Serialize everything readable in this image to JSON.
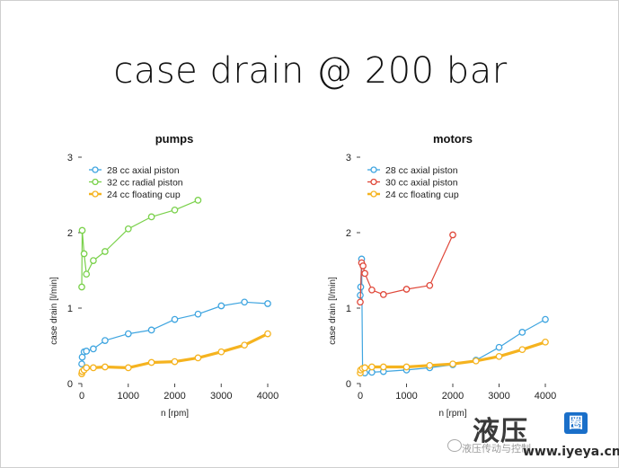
{
  "slide": {
    "title": "case drain @ 200 bar"
  },
  "colors": {
    "blue": "#3fa5e0",
    "green": "#7ad14b",
    "red": "#e0483a",
    "orange": "#f5b31f"
  },
  "watermark": {
    "brand": "液压",
    "badge": "圈",
    "subtitle": "液压传动与控制",
    "url": "www.iyeya.cn"
  },
  "chart_data": [
    {
      "type": "line",
      "title": "pumps",
      "xlabel": "n [rpm]",
      "ylabel": "case drain [l/min]",
      "xlim": [
        0,
        4000
      ],
      "ylim": [
        0,
        3
      ],
      "xticks": [
        0,
        1000,
        2000,
        3000,
        4000
      ],
      "yticks": [
        0,
        1,
        2,
        3
      ],
      "grid": false,
      "legend_position": "top-left",
      "series": [
        {
          "name": "28 cc axial piston",
          "color": "#3fa5e0",
          "width": 1.2,
          "x": [
            0,
            10,
            50,
            100,
            250,
            500,
            1000,
            1500,
            2000,
            2500,
            3000,
            3500,
            4000
          ],
          "y": [
            0.26,
            0.35,
            0.42,
            0.43,
            0.46,
            0.57,
            0.66,
            0.71,
            0.85,
            0.92,
            1.03,
            1.08,
            1.06
          ]
        },
        {
          "name": "32 cc radial piston",
          "color": "#7ad14b",
          "width": 1.2,
          "x": [
            0,
            10,
            50,
            100,
            250,
            500,
            1000,
            1500,
            2000,
            2500
          ],
          "y": [
            1.28,
            2.03,
            1.72,
            1.45,
            1.63,
            1.75,
            2.05,
            2.21,
            2.3,
            2.43
          ]
        },
        {
          "name": "24 cc floating cup",
          "color": "#f5b31f",
          "width": 3.2,
          "x": [
            0,
            10,
            50,
            100,
            250,
            500,
            1000,
            1500,
            2000,
            2500,
            3000,
            3500,
            4000
          ],
          "y": [
            0.13,
            0.16,
            0.18,
            0.21,
            0.21,
            0.22,
            0.21,
            0.28,
            0.29,
            0.34,
            0.42,
            0.51,
            0.66
          ]
        }
      ]
    },
    {
      "type": "line",
      "title": "motors",
      "xlabel": "n [rpm]",
      "ylabel": "case drain [l/min]",
      "xlim": [
        0,
        4000
      ],
      "ylim": [
        0,
        3
      ],
      "xticks": [
        0,
        1000,
        2000,
        3000,
        4000
      ],
      "yticks": [
        0,
        1,
        2,
        3
      ],
      "grid": false,
      "legend_position": "top-left",
      "series": [
        {
          "name": "28 cc axial piston",
          "color": "#3fa5e0",
          "width": 1.2,
          "x": [
            0,
            10,
            30,
            50,
            100,
            250,
            500,
            1000,
            1500,
            2000,
            2500,
            3000,
            3500,
            4000
          ],
          "y": [
            1.17,
            1.28,
            1.65,
            0.17,
            0.14,
            0.15,
            0.16,
            0.18,
            0.21,
            0.25,
            0.31,
            0.48,
            0.68,
            0.85
          ]
        },
        {
          "name": "30 cc axial piston",
          "color": "#e0483a",
          "width": 1.2,
          "x": [
            0,
            30,
            60,
            100,
            250,
            500,
            1000,
            1500,
            2000
          ],
          "y": [
            1.08,
            1.6,
            1.56,
            1.46,
            1.24,
            1.18,
            1.25,
            1.3,
            1.97
          ]
        },
        {
          "name": "24 cc floating cup",
          "color": "#f5b31f",
          "width": 3.2,
          "x": [
            0,
            10,
            50,
            100,
            250,
            500,
            1000,
            1500,
            2000,
            2500,
            3000,
            3500,
            4000
          ],
          "y": [
            0.14,
            0.18,
            0.2,
            0.21,
            0.22,
            0.22,
            0.22,
            0.24,
            0.26,
            0.3,
            0.36,
            0.45,
            0.55
          ]
        }
      ]
    }
  ]
}
